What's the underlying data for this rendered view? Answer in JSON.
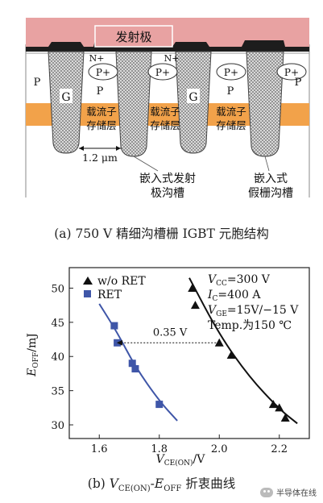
{
  "figure_a": {
    "labels": {
      "emitter": "发射极",
      "n_plus_1": "N+",
      "n_plus_2": "N+",
      "p_plus_1": "P+",
      "p_plus_2": "P+",
      "p_plus_3": "P+",
      "p_plus_4": "P+",
      "p_left": "P",
      "p_mid": "P",
      "p_mid2": "P",
      "p_right": "P",
      "g1": "G",
      "g2": "G",
      "cs1_a": "载流子",
      "cs1_b": "存储层",
      "cs2_a": "载流子",
      "cs2_b": "存储层",
      "cs3_a": "载流子",
      "cs3_b": "存储层",
      "width": "1.2 μm",
      "embedded_emitter_a": "嵌入式发射",
      "embedded_emitter_b": "极沟槽",
      "dummy_gate_a": "嵌入式",
      "dummy_gate_b": "假栅沟槽"
    },
    "caption": "(a) 750 V 精细沟槽栅 IGBT 元胞结构"
  },
  "figure_b": {
    "caption_prefix": "(b) ",
    "caption_v": "V",
    "caption_v_sub": "CE(ON)",
    "caption_dash": "-",
    "caption_e": "E",
    "caption_e_sub": "OFF",
    "caption_suffix": " 折衷曲线",
    "conditions": {
      "vcc": "=300 V",
      "ic": "=400 A",
      "vge": "=15V/−15 V",
      "temp": "Temp.为150 ℃"
    },
    "annotation": "0.35 V",
    "xlabel_main": "V",
    "xlabel_sub": "CE(ON)",
    "xlabel_unit": "/V",
    "ylabel_main": "E",
    "ylabel_sub": "OFF",
    "ylabel_unit": "/mJ"
  },
  "watermark": "半导体在线",
  "chart_data": {
    "type": "scatter",
    "xlim": [
      1.5,
      2.3
    ],
    "ylim": [
      28,
      53
    ],
    "x_ticks": [
      1.6,
      1.8,
      2.0,
      2.2
    ],
    "y_ticks": [
      30,
      35,
      40,
      45,
      50
    ],
    "x_tick_labels": [
      "1.6",
      "1.8",
      "2.0",
      "2.2"
    ],
    "y_tick_labels": [
      "30",
      "35",
      "40",
      "45",
      "50"
    ],
    "legend_placement": "top-left",
    "series": [
      {
        "name": "w/o RET",
        "marker": "triangle",
        "color": "#111111",
        "points": [
          [
            1.91,
            50.0
          ],
          [
            1.92,
            47.5
          ],
          [
            2.0,
            42.0
          ],
          [
            2.04,
            40.2
          ],
          [
            2.18,
            33.0
          ],
          [
            2.2,
            32.5
          ],
          [
            2.22,
            31.0
          ]
        ],
        "fit": [
          [
            1.9,
            51.5
          ],
          [
            2.0,
            43.2
          ],
          [
            2.1,
            37.0
          ],
          [
            2.2,
            32.3
          ],
          [
            2.26,
            30.2
          ]
        ]
      },
      {
        "name": "RET",
        "marker": "square",
        "color": "#3f56a8",
        "points": [
          [
            1.65,
            44.5
          ],
          [
            1.66,
            42.0
          ],
          [
            1.71,
            39.0
          ],
          [
            1.72,
            38.2
          ],
          [
            1.8,
            33.0
          ]
        ],
        "fit": [
          [
            1.6,
            47.7
          ],
          [
            1.66,
            43.5
          ],
          [
            1.72,
            38.5
          ],
          [
            1.8,
            33.5
          ],
          [
            1.86,
            30.6
          ]
        ]
      }
    ],
    "annotations": [
      {
        "text": "0.35 V",
        "x_from": 2.0,
        "x_to": 1.65,
        "y": 42.0
      }
    ]
  }
}
